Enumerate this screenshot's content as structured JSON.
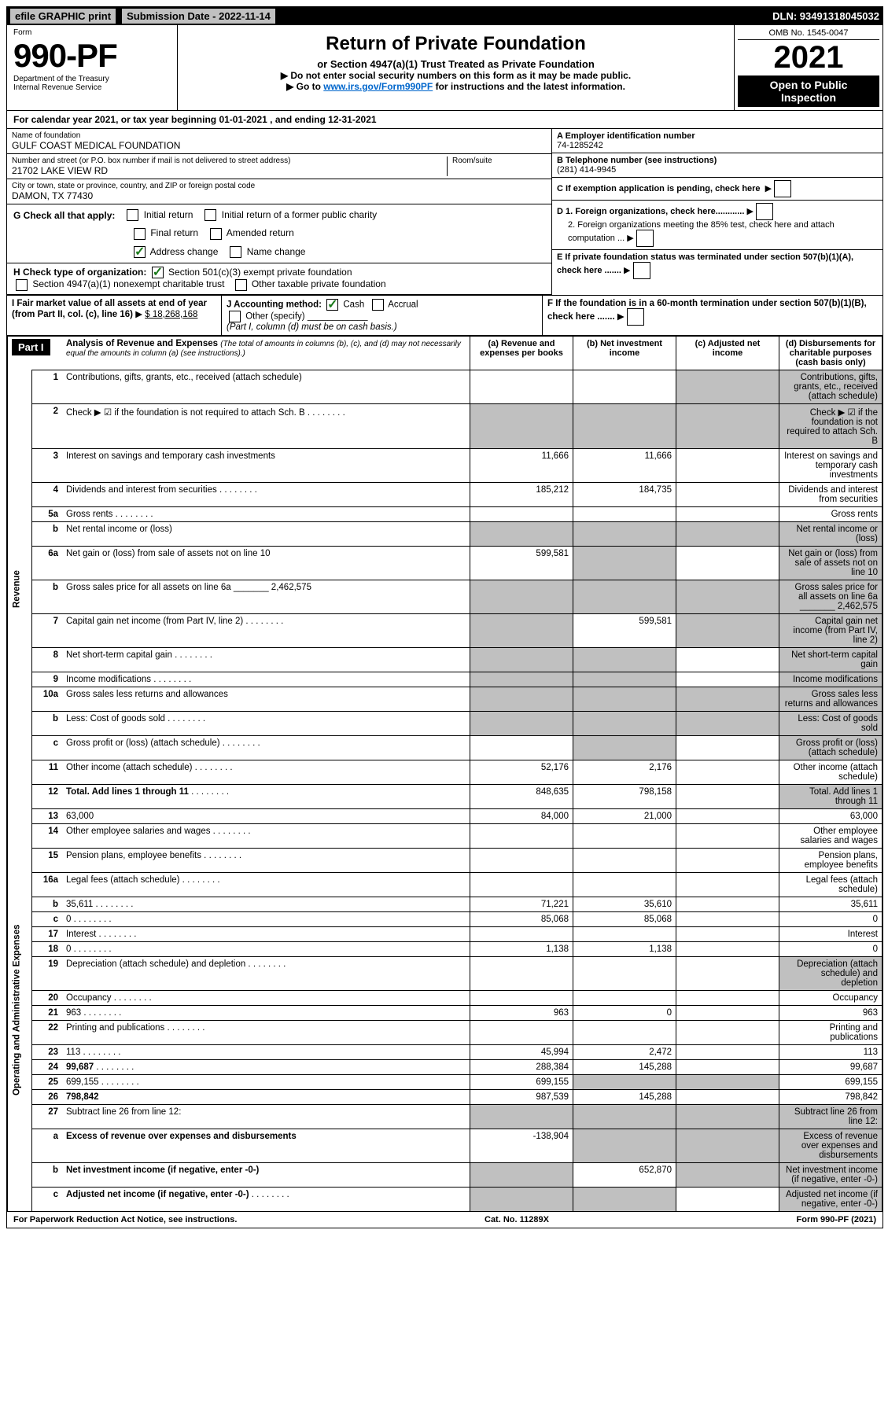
{
  "top": {
    "efile": "efile GRAPHIC print",
    "sub_label": "Submission Date - 2022-11-14",
    "dln": "DLN: 93491318045032"
  },
  "header": {
    "form_label": "Form",
    "form_num": "990-PF",
    "dept": "Department of the Treasury",
    "irs": "Internal Revenue Service",
    "title": "Return of Private Foundation",
    "subtitle": "or Section 4947(a)(1) Trust Treated as Private Foundation",
    "warn1": "▶ Do not enter social security numbers on this form as it may be made public.",
    "warn2_pre": "▶ Go to ",
    "warn2_link": "www.irs.gov/Form990PF",
    "warn2_post": " for instructions and the latest information.",
    "omb": "OMB No. 1545-0047",
    "year": "2021",
    "open": "Open to Public Inspection"
  },
  "cal": "For calendar year 2021, or tax year beginning 01-01-2021              , and ending 12-31-2021",
  "info": {
    "name_label": "Name of foundation",
    "name": "GULF COAST MEDICAL FOUNDATION",
    "addr_label": "Number and street (or P.O. box number if mail is not delivered to street address)",
    "addr": "21702 LAKE VIEW RD",
    "room_label": "Room/suite",
    "city_label": "City or town, state or province, country, and ZIP or foreign postal code",
    "city": "DAMON, TX  77430",
    "a_label": "A Employer identification number",
    "a_val": "74-1285242",
    "b_label": "B Telephone number (see instructions)",
    "b_val": "(281) 414-9945",
    "c_label": "C If exemption application is pending, check here",
    "d1": "D 1. Foreign organizations, check here............",
    "d2": "2. Foreign organizations meeting the 85% test, check here and attach computation ...",
    "e_label": "E  If private foundation status was terminated under section 507(b)(1)(A), check here .......",
    "f_label": "F  If the foundation is in a 60-month termination under section 507(b)(1)(B), check here ......."
  },
  "g": {
    "label": "G Check all that apply:",
    "opts": [
      "Initial return",
      "Final return",
      "Address change",
      "Initial return of a former public charity",
      "Amended return",
      "Name change"
    ]
  },
  "h": {
    "label": "H Check type of organization:",
    "o1": "Section 501(c)(3) exempt private foundation",
    "o2": "Section 4947(a)(1) nonexempt charitable trust",
    "o3": "Other taxable private foundation"
  },
  "i": {
    "label": "I Fair market value of all assets at end of year (from Part II, col. (c), line 16)",
    "val": "$  18,268,168"
  },
  "j": {
    "label": "J Accounting method:",
    "cash": "Cash",
    "accrual": "Accrual",
    "other": "Other (specify)",
    "note": "(Part I, column (d) must be on cash basis.)"
  },
  "part1": {
    "title": "Part I",
    "heading": "Analysis of Revenue and Expenses",
    "heading_note": "(The total of amounts in columns (b), (c), and (d) may not necessarily equal the amounts in column (a) (see instructions).)",
    "cols": {
      "a": "(a) Revenue and expenses per books",
      "b": "(b) Net investment income",
      "c": "(c) Adjusted net income",
      "d": "(d) Disbursements for charitable purposes (cash basis only)"
    }
  },
  "side_labels": {
    "revenue": "Revenue",
    "expenses": "Operating and Administrative Expenses"
  },
  "rows": [
    {
      "n": "1",
      "d": "Contributions, gifts, grants, etc., received (attach schedule)",
      "a": "",
      "b": "",
      "shade_c": true,
      "shade_d": true
    },
    {
      "n": "2",
      "d": "Check ▶ ☑ if the foundation is not required to attach Sch. B",
      "dots": true,
      "shade_a": true,
      "shade_b": true,
      "shade_c": true,
      "shade_d": true
    },
    {
      "n": "3",
      "d": "Interest on savings and temporary cash investments",
      "a": "11,666",
      "b": "11,666"
    },
    {
      "n": "4",
      "d": "Dividends and interest from securities",
      "dots": true,
      "a": "185,212",
      "b": "184,735"
    },
    {
      "n": "5a",
      "d": "Gross rents",
      "dots": true
    },
    {
      "n": "b",
      "d": "Net rental income or (loss)",
      "shade_a": true,
      "shade_b": true,
      "shade_c": true,
      "shade_d": true
    },
    {
      "n": "6a",
      "d": "Net gain or (loss) from sale of assets not on line 10",
      "a": "599,581",
      "shade_b": true,
      "shade_d": true
    },
    {
      "n": "b",
      "d": "Gross sales price for all assets on line 6a _______ 2,462,575",
      "shade_a": true,
      "shade_b": true,
      "shade_c": true,
      "shade_d": true
    },
    {
      "n": "7",
      "d": "Capital gain net income (from Part IV, line 2)",
      "dots": true,
      "shade_a": true,
      "b": "599,581",
      "shade_c": true,
      "shade_d": true
    },
    {
      "n": "8",
      "d": "Net short-term capital gain",
      "dots": true,
      "shade_a": true,
      "shade_b": true,
      "shade_d": true
    },
    {
      "n": "9",
      "d": "Income modifications",
      "dots": true,
      "shade_a": true,
      "shade_b": true,
      "shade_d": true
    },
    {
      "n": "10a",
      "d": "Gross sales less returns and allowances",
      "shade_a": true,
      "shade_b": true,
      "shade_c": true,
      "shade_d": true
    },
    {
      "n": "b",
      "d": "Less: Cost of goods sold",
      "dots": true,
      "shade_a": true,
      "shade_b": true,
      "shade_c": true,
      "shade_d": true
    },
    {
      "n": "c",
      "d": "Gross profit or (loss) (attach schedule)",
      "dots": true,
      "shade_b": true,
      "shade_d": true
    },
    {
      "n": "11",
      "d": "Other income (attach schedule)",
      "dots": true,
      "a": "52,176",
      "b": "2,176"
    },
    {
      "n": "12",
      "d": "Total. Add lines 1 through 11",
      "dots": true,
      "bold": true,
      "a": "848,635",
      "b": "798,158",
      "shade_d": true
    },
    {
      "n": "13",
      "d": "63,000",
      "a": "84,000",
      "b": "21,000"
    },
    {
      "n": "14",
      "d": "Other employee salaries and wages",
      "dots": true
    },
    {
      "n": "15",
      "d": "Pension plans, employee benefits",
      "dots": true
    },
    {
      "n": "16a",
      "d": "Legal fees (attach schedule)",
      "dots": true
    },
    {
      "n": "b",
      "d": "35,611",
      "dots": true,
      "a": "71,221",
      "b": "35,610"
    },
    {
      "n": "c",
      "d": "0",
      "dots": true,
      "a": "85,068",
      "b": "85,068"
    },
    {
      "n": "17",
      "d": "Interest",
      "dots": true
    },
    {
      "n": "18",
      "d": "0",
      "dots": true,
      "a": "1,138",
      "b": "1,138"
    },
    {
      "n": "19",
      "d": "Depreciation (attach schedule) and depletion",
      "dots": true,
      "shade_d": true
    },
    {
      "n": "20",
      "d": "Occupancy",
      "dots": true
    },
    {
      "n": "21",
      "d": "963",
      "dots": true,
      "a": "963",
      "b": "0"
    },
    {
      "n": "22",
      "d": "Printing and publications",
      "dots": true
    },
    {
      "n": "23",
      "d": "113",
      "dots": true,
      "a": "45,994",
      "b": "2,472"
    },
    {
      "n": "24",
      "d": "99,687",
      "dots": true,
      "bold": true,
      "a": "288,384",
      "b": "145,288"
    },
    {
      "n": "25",
      "d": "699,155",
      "dots": true,
      "a": "699,155",
      "shade_b": true,
      "shade_c": true
    },
    {
      "n": "26",
      "d": "798,842",
      "bold": true,
      "a": "987,539",
      "b": "145,288"
    },
    {
      "n": "27",
      "d": "Subtract line 26 from line 12:",
      "shade_a": true,
      "shade_b": true,
      "shade_c": true,
      "shade_d": true
    },
    {
      "n": "a",
      "d": "Excess of revenue over expenses and disbursements",
      "bold": true,
      "a": "-138,904",
      "shade_b": true,
      "shade_c": true,
      "shade_d": true
    },
    {
      "n": "b",
      "d": "Net investment income (if negative, enter -0-)",
      "bold": true,
      "shade_a": true,
      "b": "652,870",
      "shade_c": true,
      "shade_d": true
    },
    {
      "n": "c",
      "d": "Adjusted net income (if negative, enter -0-)",
      "bold": true,
      "dots": true,
      "shade_a": true,
      "shade_b": true,
      "shade_d": true
    }
  ],
  "footer": {
    "left": "For Paperwork Reduction Act Notice, see instructions.",
    "mid": "Cat. No. 11289X",
    "right": "Form 990-PF (2021)"
  },
  "colors": {
    "accent_green": "#1a7a1a",
    "link": "#0066cc",
    "shade": "#c0c0c0",
    "border": "#000000"
  }
}
